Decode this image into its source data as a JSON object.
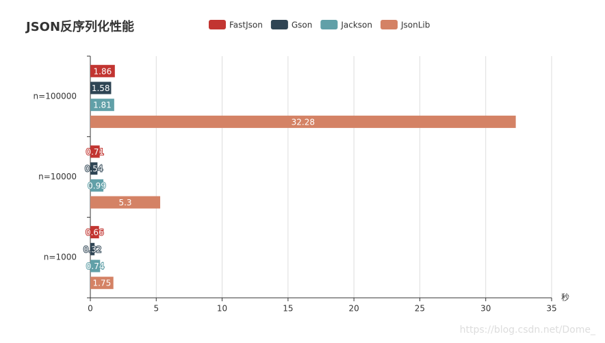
{
  "chart_data": {
    "type": "hbar",
    "title": "JSON反序列化性能",
    "categories": [
      "n=1000",
      "n=10000",
      "n=100000"
    ],
    "series": [
      {
        "name": "FastJson",
        "color": "#c23531",
        "values": [
          0.66,
          0.71,
          1.86
        ]
      },
      {
        "name": "Gson",
        "color": "#2f4554",
        "values": [
          0.32,
          0.54,
          1.58
        ]
      },
      {
        "name": "Jackson",
        "color": "#61a0a8",
        "values": [
          0.74,
          0.99,
          1.81
        ]
      },
      {
        "name": "JsonLib",
        "color": "#d48265",
        "values": [
          1.75,
          5.3,
          32.28
        ]
      }
    ],
    "x_label": "秒",
    "xlim": [
      0,
      35
    ],
    "xticks": [
      0,
      5,
      10,
      15,
      20,
      25,
      30,
      35
    ],
    "grid": true,
    "watermark": "https://blog.csdn.net/Dome_"
  }
}
